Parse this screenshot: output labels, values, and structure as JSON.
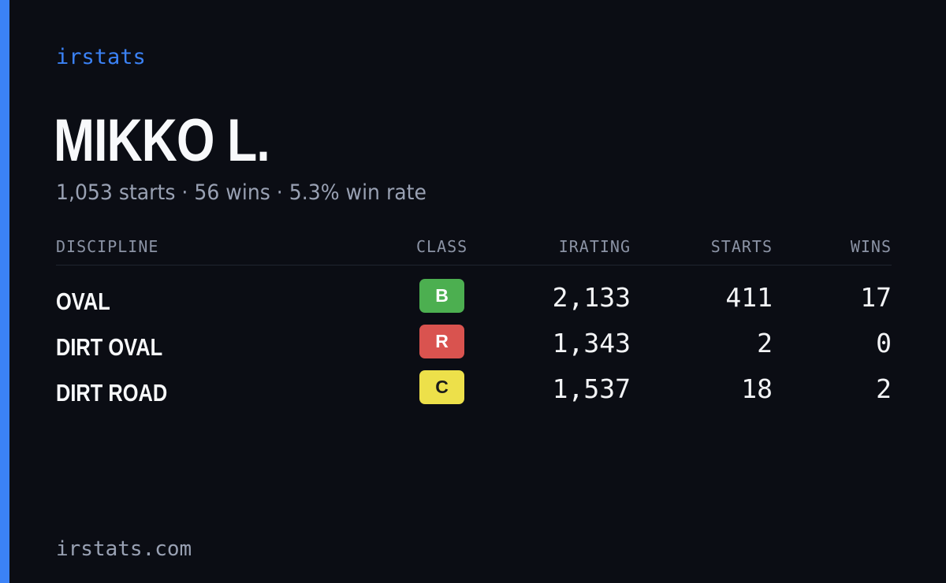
{
  "brand": "irstats",
  "driver": {
    "name": "MIKKO L.",
    "summary": "1,053 starts · 56 wins · 5.3% win rate"
  },
  "table": {
    "headers": {
      "discipline": "DISCIPLINE",
      "class": "CLASS",
      "irating": "IRATING",
      "starts": "STARTS",
      "wins": "WINS"
    },
    "rows": [
      {
        "discipline": "OVAL",
        "class": "B",
        "class_color": "#4caf50",
        "class_text_color": "#ffffff",
        "irating": "2,133",
        "starts": "411",
        "wins": "17"
      },
      {
        "discipline": "DIRT OVAL",
        "class": "R",
        "class_color": "#d9534f",
        "class_text_color": "#ffffff",
        "irating": "1,343",
        "starts": "2",
        "wins": "0"
      },
      {
        "discipline": "DIRT ROAD",
        "class": "C",
        "class_color": "#ede04a",
        "class_text_color": "#1a1a1a",
        "irating": "1,537",
        "starts": "18",
        "wins": "2"
      }
    ]
  },
  "footer": "irstats.com",
  "colors": {
    "accent": "#3b82f6",
    "background": "#0b0d14"
  }
}
